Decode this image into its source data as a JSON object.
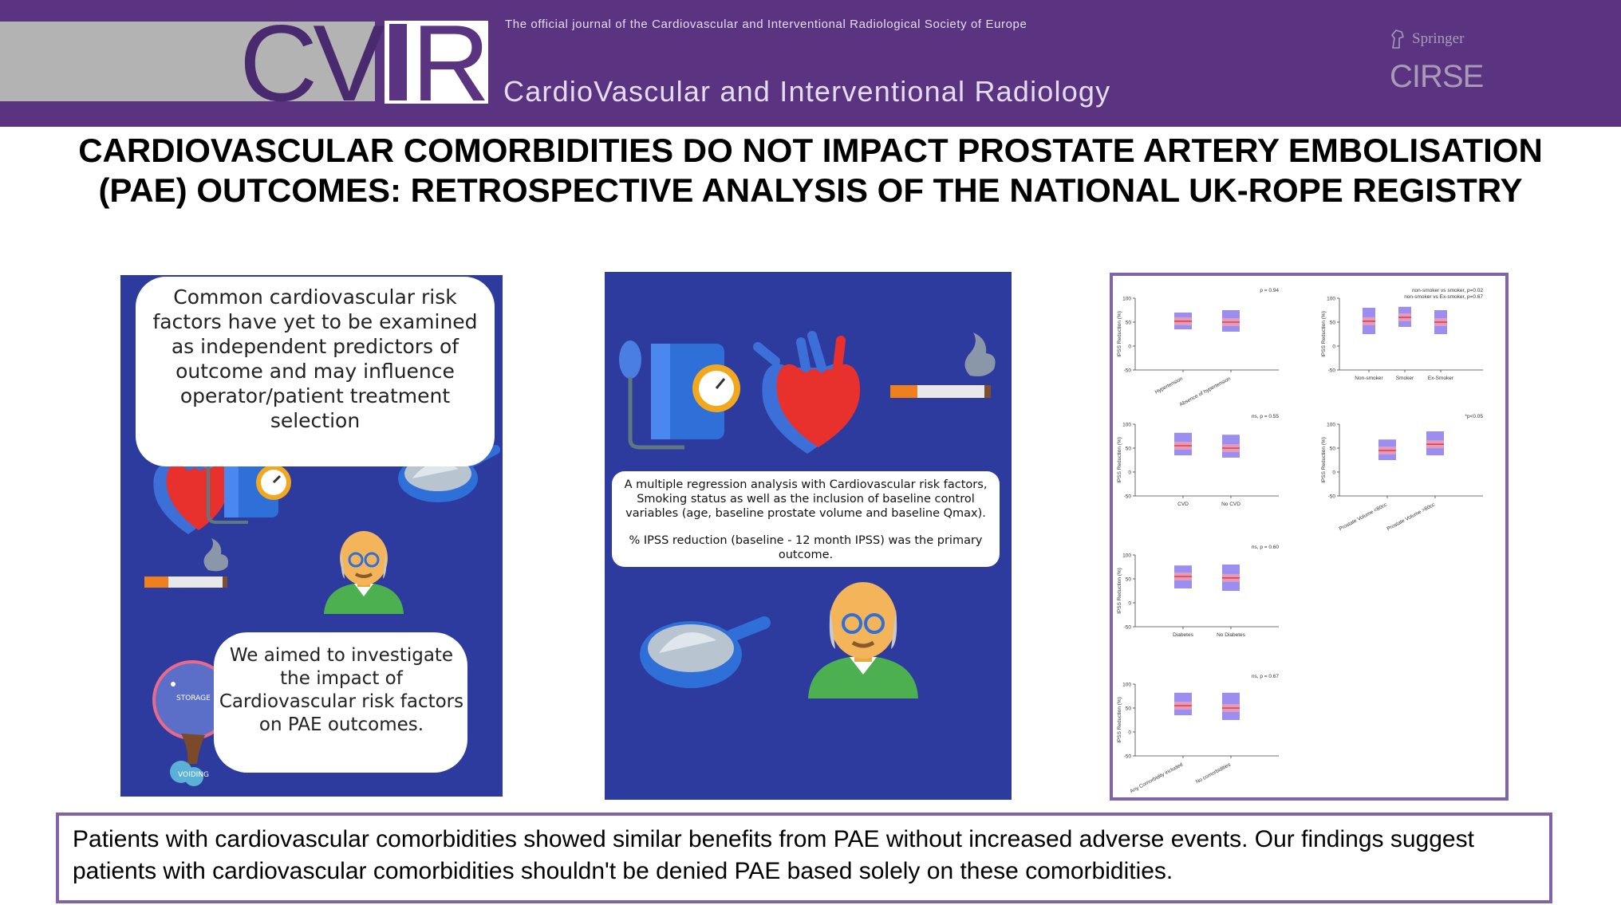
{
  "header": {
    "logo_letters": "CVIR",
    "tagline": "The official journal of the  Cardiovascular and Interventional Radiological Society of Europe",
    "journal_name": "CardioVascular and Interventional Radiology",
    "springer": "Springer",
    "cirse": "CIRSE",
    "banner_color": "#5a3481"
  },
  "title": "CARDIOVASCULAR COMORBIDITIES DO NOT IMPACT PROSTATE ARTERY EMBOLISATION (PAE) OUTCOMES: RETROSPECTIVE ANALYSIS OF THE NATIONAL UK-ROPE REGISTRY",
  "panel1": {
    "bubble_top": "Common cardiovascular risk factors have yet to be examined as independent predictors of outcome and may influence operator/patient treatment selection",
    "bubble_bottom": "We aimed to investigate the impact of Cardiovascular risk factors on PAE outcomes.",
    "bladder_storage": "STORAGE",
    "bladder_voiding": "VOIDING",
    "background_color": "#2d3b9e"
  },
  "panel2": {
    "method_text": "A multiple regression analysis with Cardiovascular risk factors, Smoking status as well as the inclusion of baseline control variables (age, baseline prostate volume and baseline Qmax).",
    "outcome_text": "% IPSS reduction (baseline - 12 month IPSS) was the primary outcome."
  },
  "chart_data": [
    {
      "type": "box",
      "ylabel": "IPSS Reduction (%)",
      "ylim": [
        -50,
        100
      ],
      "yticks": [
        "100",
        "50",
        "0",
        "-50"
      ],
      "categories": [
        "Hypertension",
        "Absence of hypertension"
      ],
      "annotation": "p = 0.94",
      "medians": [
        52,
        50
      ],
      "q1": [
        35,
        30
      ],
      "q3": [
        70,
        75
      ]
    },
    {
      "type": "box",
      "ylabel": "IPSS Reduction (%)",
      "ylim": [
        -50,
        100
      ],
      "yticks": [
        "100",
        "50",
        "0",
        "-50"
      ],
      "categories": [
        "Non-smoker",
        "Smoker",
        "Ex-Smoker"
      ],
      "annotation": "non-smoker vs smoker, p=0.02 / non-smoker vs Ex-smoker, p=0.67",
      "medians": [
        52,
        60,
        50
      ],
      "q1": [
        25,
        40,
        25
      ],
      "q3": [
        80,
        82,
        75
      ]
    },
    {
      "type": "box",
      "ylabel": "IPSS Reduction (%)",
      "ylim": [
        -50,
        100
      ],
      "yticks": [
        "100",
        "50",
        "0",
        "-50"
      ],
      "categories": [
        "CVD",
        "No CVD"
      ],
      "annotation": "ns, p = 0.55",
      "medians": [
        55,
        50
      ],
      "q1": [
        35,
        30
      ],
      "q3": [
        82,
        78
      ]
    },
    {
      "type": "box",
      "ylabel": "IPSS Reduction (%)",
      "ylim": [
        -50,
        100
      ],
      "yticks": [
        "100",
        "50",
        "0",
        "-50"
      ],
      "categories": [
        "Prostate Volume <80cc",
        "Prostate Volume >80cc"
      ],
      "annotation": "*p<0.05",
      "medians": [
        45,
        58
      ],
      "q1": [
        25,
        35
      ],
      "q3": [
        68,
        85
      ]
    },
    {
      "type": "box",
      "ylabel": "IPSS Reduction (%)",
      "ylim": [
        -50,
        100
      ],
      "yticks": [
        "100",
        "50",
        "0",
        "-50"
      ],
      "categories": [
        "Diabetes",
        "No Diabetes"
      ],
      "annotation": "ns, p = 0.60",
      "medians": [
        55,
        52
      ],
      "q1": [
        30,
        25
      ],
      "q3": [
        78,
        80
      ]
    },
    {
      "type": "box",
      "ylabel": "IPSS Reduction (%)",
      "ylim": [
        -50,
        100
      ],
      "yticks": [
        "100",
        "50",
        "0",
        "-50"
      ],
      "categories": [
        "Any Comorbidity included",
        "No comorbidities"
      ],
      "annotation": "ns, p = 0.67",
      "medians": [
        55,
        50
      ],
      "q1": [
        35,
        25
      ],
      "q3": [
        82,
        82
      ]
    }
  ],
  "conclusion": "Patients with cardiovascular comorbidities showed similar benefits from PAE without increased adverse events. Our findings suggest patients with cardiovascular comorbidities shouldn't be denied PAE based solely on these comorbidities.",
  "colors": {
    "accent": "#7f64a8",
    "panel_blue": "#2d3b9e",
    "box_fill": "#9b8ef0",
    "median": "#e83c3c"
  }
}
